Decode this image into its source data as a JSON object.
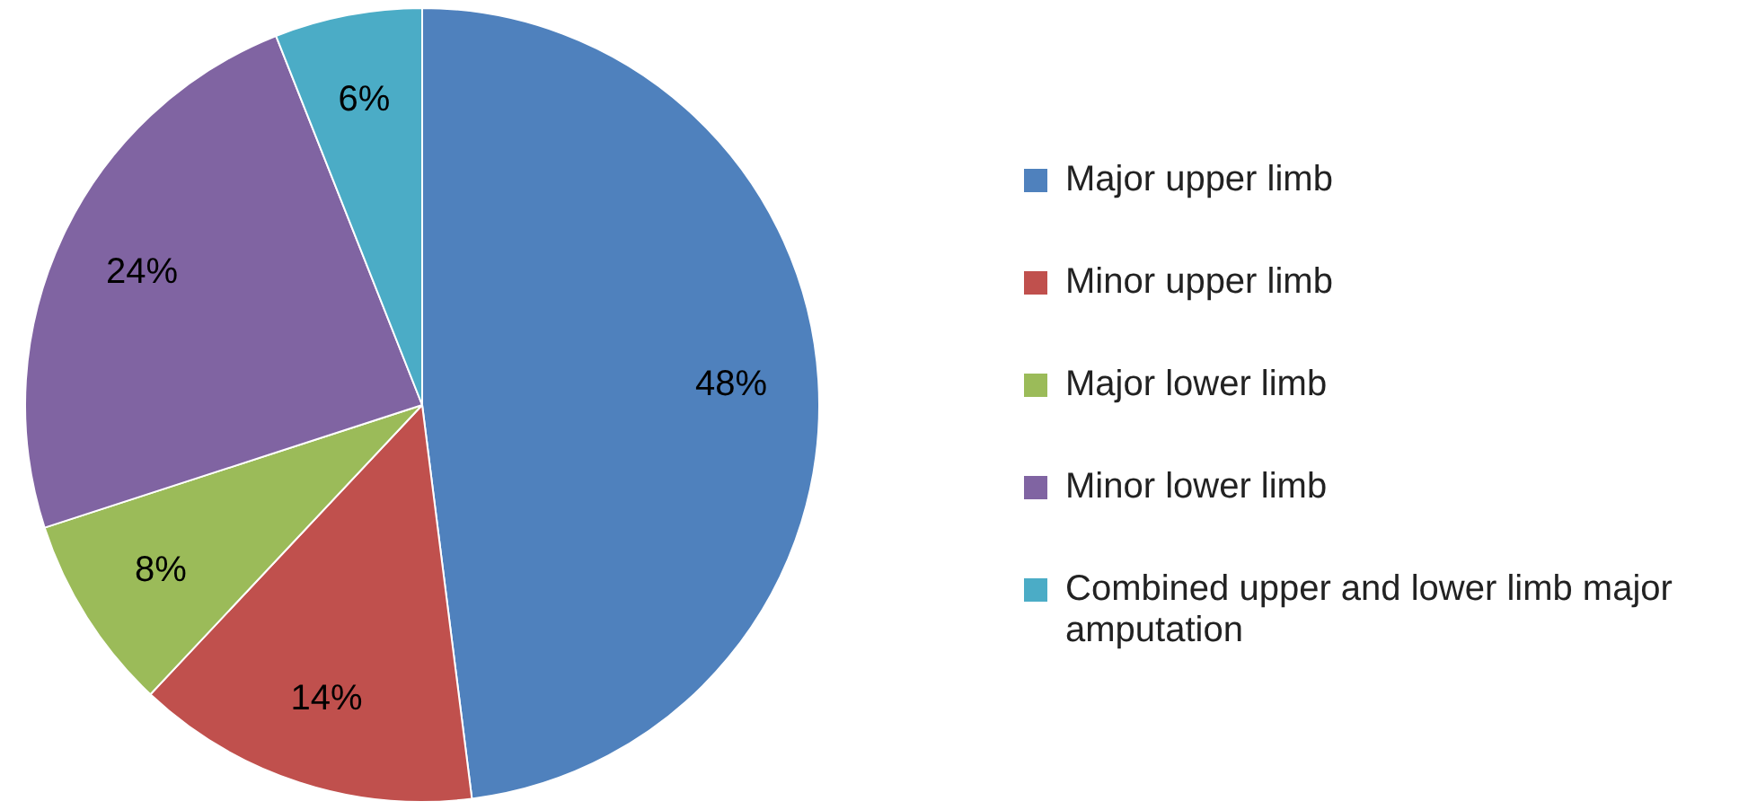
{
  "chart_data": {
    "type": "pie",
    "categories": [
      "Major upper limb",
      "Minor upper limb",
      "Major lower limb",
      "Minor lower limb",
      "Combined upper and lower limb major amputation"
    ],
    "values": [
      48,
      14,
      8,
      24,
      6
    ],
    "colors": [
      "#4f81bd",
      "#c0504d",
      "#9bbb59",
      "#8064a2",
      "#4bacc6"
    ],
    "value_labels": [
      "48%",
      "14%",
      "8%",
      "24%",
      "6%"
    ],
    "legend": "right"
  }
}
